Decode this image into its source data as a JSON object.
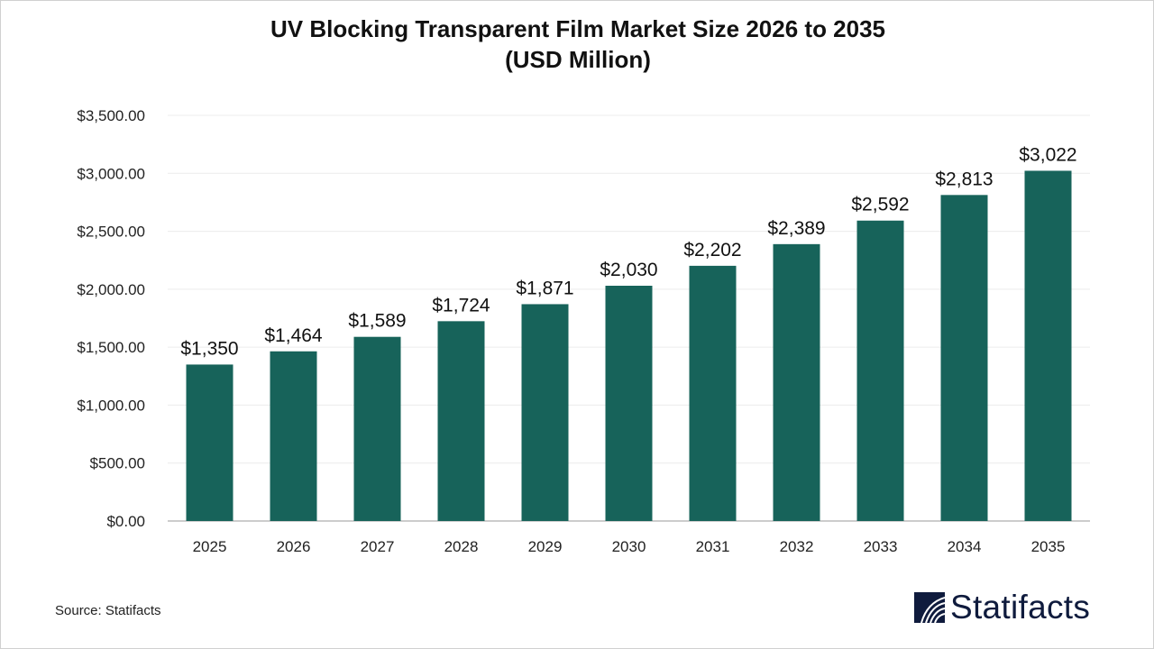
{
  "chart_data": {
    "type": "bar",
    "title": "UV Blocking Transparent Film Market Size 2026 to 2035",
    "subtitle": "(USD Million)",
    "categories": [
      "2025",
      "2026",
      "2027",
      "2028",
      "2029",
      "2030",
      "2031",
      "2032",
      "2033",
      "2034",
      "2035"
    ],
    "values": [
      1350,
      1464,
      1589,
      1724,
      1871,
      2030,
      2202,
      2389,
      2592,
      2813,
      3022
    ],
    "data_labels": [
      "$1,350",
      "$1,464",
      "$1,589",
      "$1,724",
      "$1,871",
      "$2,030",
      "$2,202",
      "$2,389",
      "$2,592",
      "$2,813",
      "$3,022"
    ],
    "yticks": [
      0,
      500,
      1000,
      1500,
      2000,
      2500,
      3000,
      3500
    ],
    "ytick_labels": [
      "$0.00",
      "$500.00",
      "$1,000.00",
      "$1,500.00",
      "$2,000.00",
      "$2,500.00",
      "$3,000.00",
      "$3,500.00"
    ],
    "ylim": [
      0,
      3500
    ],
    "grid": true,
    "legend": "none",
    "bar_color": "#17635a"
  },
  "source": "Source: Statifacts",
  "logo": {
    "text": "Statifacts",
    "color": "#0f1b3d"
  }
}
